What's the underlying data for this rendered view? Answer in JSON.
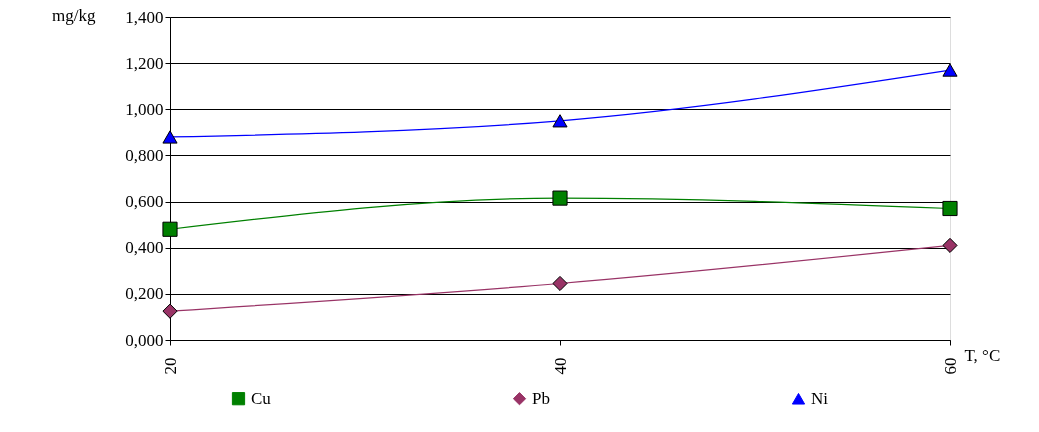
{
  "chart_data": {
    "type": "line",
    "xlabel": "T, °C",
    "ylabel": "mg/kg",
    "categories": [
      "20",
      "40",
      "60"
    ],
    "ylim": [
      0,
      1.4
    ],
    "yticks": [
      {
        "value": 0,
        "label": "0,000"
      },
      {
        "value": 0.2,
        "label": "0,200"
      },
      {
        "value": 0.4,
        "label": "0,400"
      },
      {
        "value": 0.6,
        "label": "0,600"
      },
      {
        "value": 0.8,
        "label": "0,800"
      },
      {
        "value": 1.0,
        "label": "1,000"
      },
      {
        "value": 1.2,
        "label": "1,200"
      },
      {
        "value": 1.4,
        "label": "1,400"
      }
    ],
    "grid": "y",
    "legend": "bottom",
    "line_style": "solid",
    "series": [
      {
        "name": "Cu",
        "color": "#008000",
        "marker": "square",
        "values": [
          0.48,
          0.615,
          0.57
        ]
      },
      {
        "name": "Pb",
        "color": "#993366",
        "marker": "diamond",
        "values": [
          0.125,
          0.245,
          0.41
        ]
      },
      {
        "name": "Ni",
        "color": "#0000ff",
        "marker": "triangle",
        "values": [
          0.88,
          0.95,
          1.17
        ]
      }
    ]
  }
}
